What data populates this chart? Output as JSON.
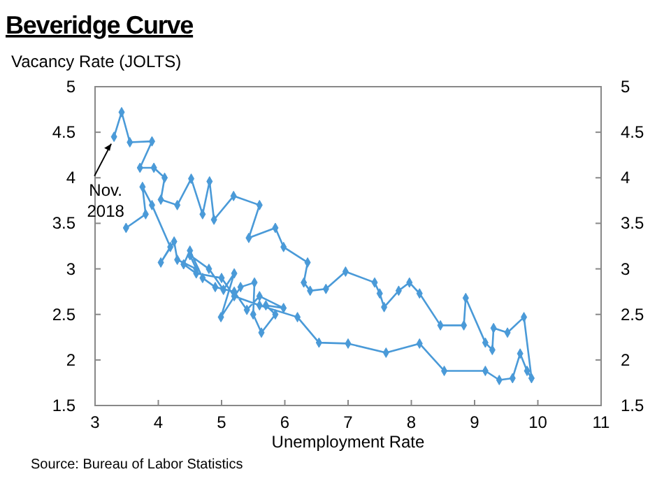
{
  "chart_data": {
    "type": "line",
    "title": "Beveridge Curve",
    "ylabel": "Vacancy Rate (JOLTS)",
    "xlabel": "Unemployment Rate",
    "annotations": [
      {
        "text": "Nov. 2018",
        "x": 3.3,
        "y": 4.45
      },
      "Source: Bureau of Labor Statistics"
    ],
    "series": [
      {
        "color": "#4a9ad8",
        "marker": "diamond",
        "x": [
          3.49,
          3.8,
          3.75,
          3.9,
          4.19,
          4.04,
          4.25,
          4.3,
          4.6,
          4.5,
          4.8,
          5.03,
          5.2,
          4.99,
          5.3,
          5.52,
          5.5,
          5.63,
          5.85,
          5.7,
          5.98,
          5.6,
          5.4,
          5.2,
          4.9,
          4.7,
          4.5,
          4.4,
          4.6,
          5.0,
          5.2,
          5.6,
          6.2,
          6.54,
          7.0,
          7.6,
          8.13,
          8.52,
          9.17,
          9.39,
          9.6,
          9.72,
          9.83,
          9.9,
          9.78,
          9.52,
          9.3,
          9.28,
          9.17,
          8.86,
          8.83,
          8.46,
          8.13,
          7.97,
          7.8,
          7.57,
          7.5,
          7.42,
          6.96,
          6.65,
          6.4,
          6.3,
          6.36,
          5.98,
          5.85,
          5.43,
          5.6,
          5.19,
          4.88,
          4.81,
          4.7,
          4.52,
          4.3,
          4.04,
          4.1,
          3.93,
          3.71,
          3.9,
          3.55,
          3.42,
          3.3
        ],
        "values": [
          3.45,
          3.6,
          3.9,
          3.7,
          3.24,
          3.07,
          3.3,
          3.1,
          3.0,
          3.15,
          3.0,
          2.77,
          2.95,
          2.47,
          2.8,
          2.85,
          2.5,
          2.3,
          2.5,
          2.6,
          2.57,
          2.7,
          2.55,
          2.75,
          2.8,
          2.9,
          3.2,
          3.05,
          2.95,
          2.9,
          2.7,
          2.6,
          2.47,
          2.19,
          2.18,
          2.08,
          2.18,
          1.88,
          1.88,
          1.78,
          1.8,
          2.07,
          1.88,
          1.8,
          2.47,
          2.3,
          2.35,
          2.11,
          2.19,
          2.68,
          2.38,
          2.38,
          2.73,
          2.85,
          2.76,
          2.58,
          2.73,
          2.85,
          2.97,
          2.78,
          2.76,
          2.85,
          3.07,
          3.24,
          3.45,
          3.34,
          3.7,
          3.8,
          3.54,
          3.96,
          3.6,
          3.99,
          3.7,
          3.76,
          4.0,
          4.11,
          4.11,
          4.4,
          4.39,
          4.72,
          4.45
        ]
      }
    ],
    "xlim": [
      3,
      11
    ],
    "xticks": [
      3,
      4,
      5,
      6,
      7,
      8,
      9,
      10,
      11
    ],
    "ylim": [
      1.5,
      5
    ],
    "yticks": [
      1.5,
      2,
      2.5,
      3,
      3.5,
      4,
      4.5,
      5
    ],
    "y2lim": [
      1.5,
      5
    ],
    "y2ticks": [
      1.5,
      2,
      2.5,
      3,
      3.5,
      4,
      4.5,
      5
    ],
    "grid": false
  }
}
